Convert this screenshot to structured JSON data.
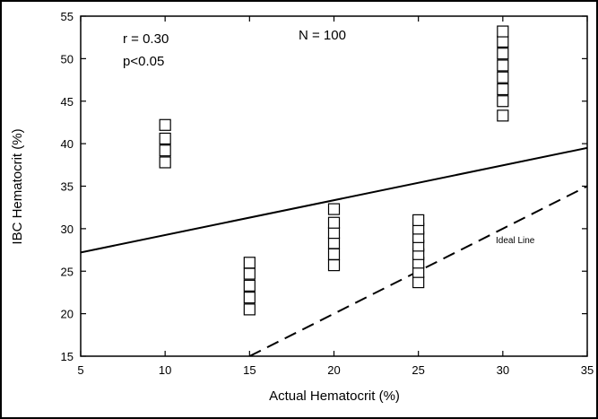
{
  "chart_data": {
    "type": "scatter",
    "xlabel": "Actual Hematocrit (%)",
    "ylabel": "IBC Hematocrit (%)",
    "xlim": [
      5,
      35
    ],
    "ylim": [
      15,
      55
    ],
    "xticks": [
      5,
      10,
      15,
      20,
      25,
      30,
      35
    ],
    "yticks": [
      15,
      20,
      25,
      30,
      35,
      40,
      45,
      50,
      55
    ],
    "xtick_labels": [
      "5",
      "10",
      "15",
      "20",
      "25",
      "30",
      "35"
    ],
    "ytick_labels": [
      "15",
      "20",
      "25",
      "30",
      "35",
      "40",
      "45",
      "50",
      "55"
    ],
    "grid": false,
    "marker": "open-square",
    "points": [
      {
        "x": 10,
        "y": 37.8
      },
      {
        "x": 10,
        "y": 39.2
      },
      {
        "x": 10,
        "y": 40.6
      },
      {
        "x": 10,
        "y": 42.2
      },
      {
        "x": 15,
        "y": 20.5
      },
      {
        "x": 15,
        "y": 21.9
      },
      {
        "x": 15,
        "y": 23.3
      },
      {
        "x": 15,
        "y": 24.7
      },
      {
        "x": 15,
        "y": 26.0
      },
      {
        "x": 20,
        "y": 25.7
      },
      {
        "x": 20,
        "y": 27.0
      },
      {
        "x": 20,
        "y": 28.3
      },
      {
        "x": 20,
        "y": 29.5
      },
      {
        "x": 20,
        "y": 30.7
      },
      {
        "x": 20,
        "y": 32.3
      },
      {
        "x": 25,
        "y": 23.7
      },
      {
        "x": 25,
        "y": 24.9
      },
      {
        "x": 25,
        "y": 26.0
      },
      {
        "x": 25,
        "y": 27.0
      },
      {
        "x": 25,
        "y": 28.0
      },
      {
        "x": 25,
        "y": 29.0
      },
      {
        "x": 25,
        "y": 30.0
      },
      {
        "x": 25,
        "y": 31.0
      },
      {
        "x": 30,
        "y": 43.3
      },
      {
        "x": 30,
        "y": 45.0
      },
      {
        "x": 30,
        "y": 46.4
      },
      {
        "x": 30,
        "y": 47.8
      },
      {
        "x": 30,
        "y": 49.2
      },
      {
        "x": 30,
        "y": 50.6
      },
      {
        "x": 30,
        "y": 52.0
      },
      {
        "x": 30,
        "y": 53.2
      }
    ],
    "regression_line": {
      "x": [
        5,
        35
      ],
      "y": [
        27.2,
        39.5
      ],
      "style": "solid"
    },
    "ideal_line": {
      "x": [
        15,
        35
      ],
      "y": [
        15,
        35
      ],
      "style": "dashed",
      "label": "Ideal Line"
    },
    "annotations": {
      "r": "r = 0.30",
      "p": "p<0.05",
      "n": "N = 100"
    }
  }
}
